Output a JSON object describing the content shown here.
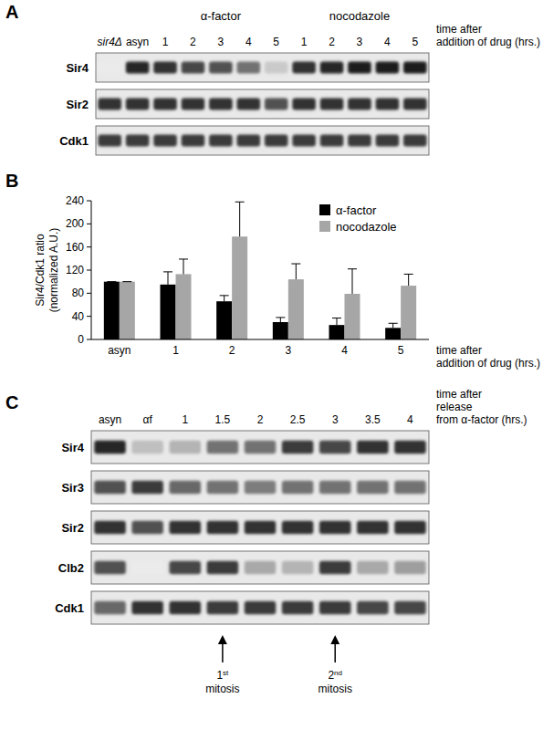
{
  "chart_data": [
    {
      "type": "blot",
      "title": "A",
      "categories": [
        "sir4Δ",
        "asyn",
        "1",
        "2",
        "3",
        "4",
        "5",
        "1",
        "2",
        "3",
        "4",
        "5"
      ],
      "groups": [
        {
          "label": "α-factor",
          "lanes": [
            2,
            3,
            4,
            5,
            6
          ]
        },
        {
          "label": "nocodazole",
          "lanes": [
            7,
            8,
            9,
            10,
            11
          ]
        }
      ],
      "xlabel": [
        "time after",
        "addition of drug (hrs.)"
      ],
      "series": [
        {
          "name": "Sir4",
          "values": [
            0,
            90,
            85,
            75,
            70,
            55,
            15,
            85,
            90,
            95,
            95,
            95
          ]
        },
        {
          "name": "Sir2",
          "values": [
            85,
            85,
            85,
            85,
            85,
            85,
            70,
            85,
            85,
            85,
            85,
            85
          ]
        },
        {
          "name": "Cdk1",
          "values": [
            80,
            80,
            80,
            80,
            80,
            80,
            80,
            80,
            80,
            80,
            80,
            80
          ]
        }
      ]
    },
    {
      "type": "bar",
      "title": "B",
      "categories": [
        "asyn",
        "1",
        "2",
        "3",
        "4",
        "5"
      ],
      "series": [
        {
          "name": "α-factor",
          "color": "#000000",
          "values": [
            100,
            95,
            66,
            30,
            25,
            20
          ],
          "errors": [
            0,
            22,
            10,
            8,
            12,
            8
          ]
        },
        {
          "name": "nocodazole",
          "color": "#a6a6a6",
          "values": [
            100,
            113,
            178,
            104,
            79,
            93
          ],
          "errors": [
            0,
            26,
            60,
            27,
            43,
            20
          ]
        }
      ],
      "ylim": [
        0,
        240
      ],
      "yticks": [
        0,
        40,
        80,
        120,
        160,
        200,
        240
      ],
      "ylabel": [
        "Sir4/Cdk1 ratio",
        "(normalized A.U.)"
      ],
      "xlabel": [
        "time after",
        "addition of drug (hrs.)"
      ],
      "legend": "upper right",
      "grid": false
    },
    {
      "type": "blot",
      "title": "C",
      "categories": [
        "asyn",
        "αf",
        "1",
        "1.5",
        "2",
        "2.5",
        "3",
        "3.5",
        "4"
      ],
      "xlabel": [
        "time after",
        "release",
        "from α-factor (hrs.)"
      ],
      "series": [
        {
          "name": "Sir4",
          "values": [
            90,
            20,
            25,
            55,
            55,
            80,
            75,
            85,
            85
          ]
        },
        {
          "name": "Sir3",
          "values": [
            70,
            80,
            60,
            55,
            50,
            55,
            55,
            55,
            55
          ]
        },
        {
          "name": "Sir2",
          "values": [
            85,
            70,
            85,
            85,
            85,
            85,
            85,
            85,
            85
          ]
        },
        {
          "name": "Clb2",
          "values": [
            70,
            0,
            75,
            80,
            30,
            25,
            80,
            30,
            35
          ]
        },
        {
          "name": "Cdk1",
          "values": [
            60,
            85,
            85,
            80,
            80,
            80,
            80,
            75,
            75
          ]
        }
      ],
      "annotations": [
        {
          "lane": 3,
          "label": "1",
          "suffix": "st",
          "text": "mitosis"
        },
        {
          "lane": 6,
          "label": "2",
          "suffix": "nd",
          "text": "mitosis"
        }
      ]
    }
  ]
}
